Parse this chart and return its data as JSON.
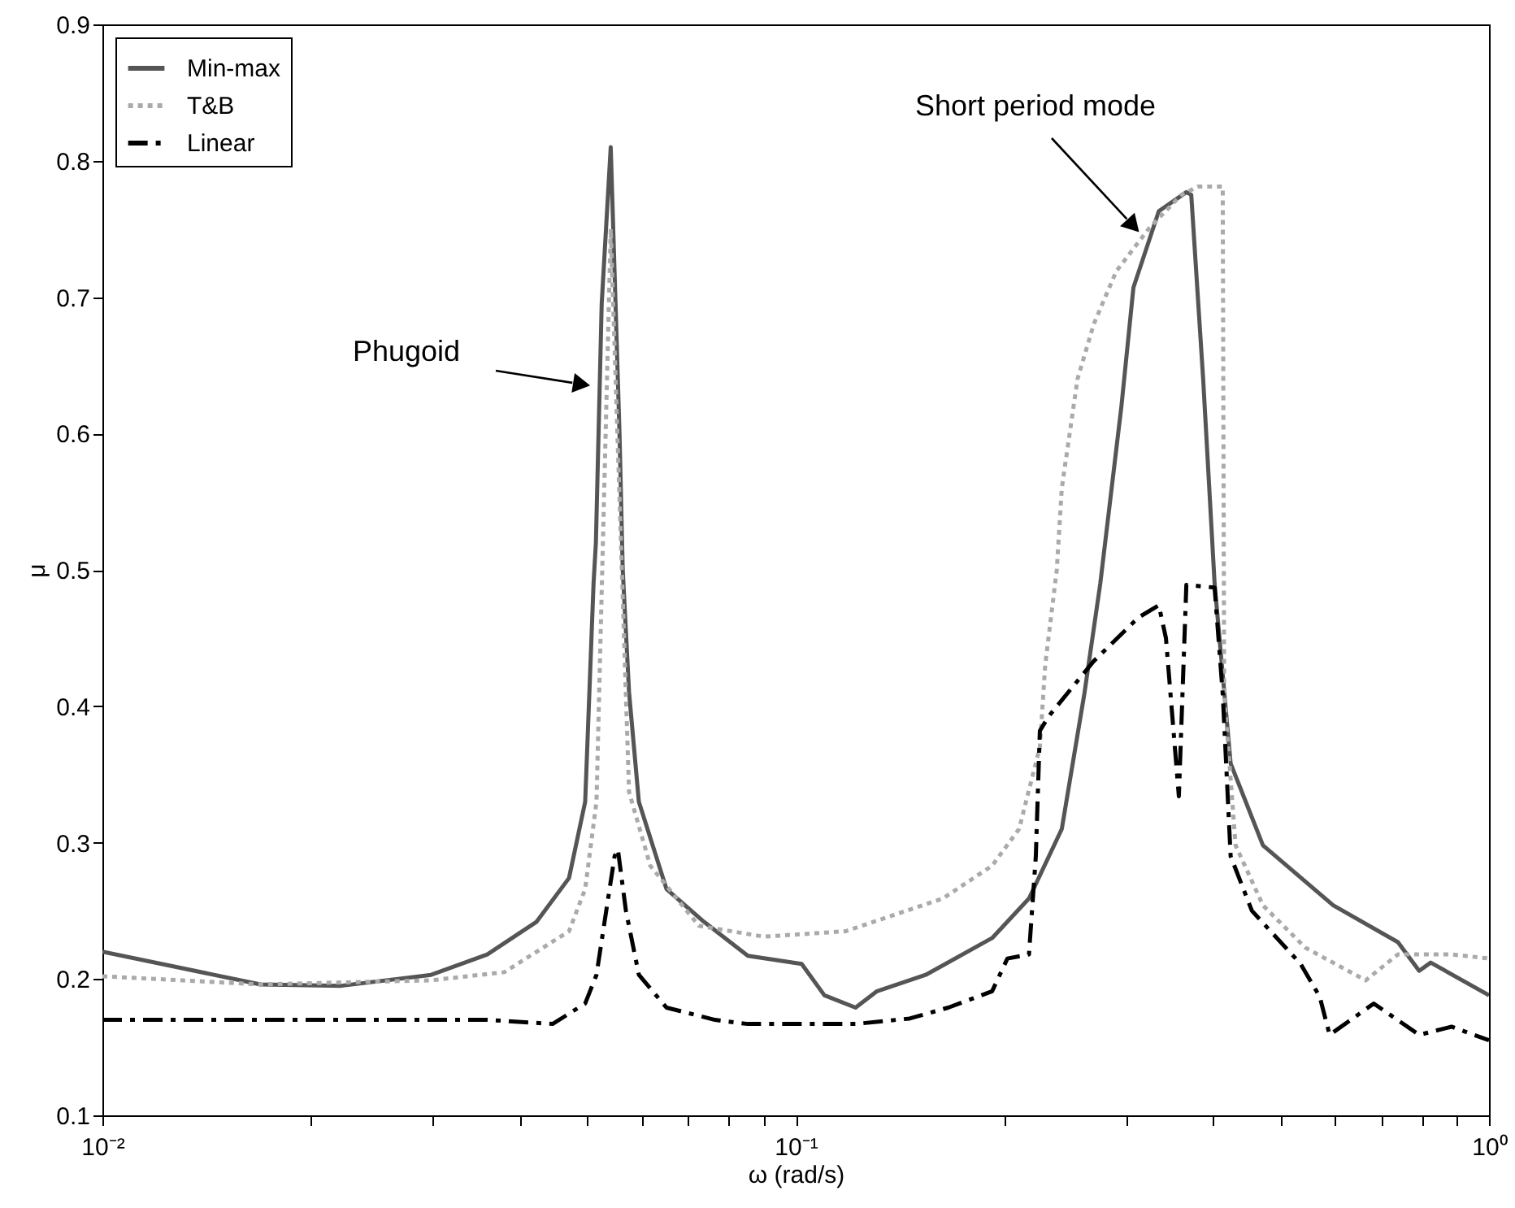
{
  "chart_data": {
    "type": "line",
    "xlabel": "ω (rad/s)",
    "ylabel": "μ",
    "log": "x",
    "legend": "top left",
    "xlim": [
      0.01,
      1
    ],
    "ylim": [
      0.1,
      0.9
    ],
    "xticks": [
      {
        "value": 0.01,
        "label": "10⁻²"
      },
      {
        "value": 0.02,
        "label": null
      },
      {
        "value": 0.03,
        "label": null
      },
      {
        "value": 0.04,
        "label": null
      },
      {
        "value": 0.05,
        "label": null
      },
      {
        "value": 0.06,
        "label": null
      },
      {
        "value": 0.07,
        "label": null
      },
      {
        "value": 0.08,
        "label": null
      },
      {
        "value": 0.09,
        "label": null
      },
      {
        "value": 0.1,
        "label": "10⁻¹"
      },
      {
        "value": 0.2,
        "label": null
      },
      {
        "value": 0.3,
        "label": null
      },
      {
        "value": 0.4,
        "label": null
      },
      {
        "value": 0.5,
        "label": null
      },
      {
        "value": 0.6,
        "label": null
      },
      {
        "value": 0.7,
        "label": null
      },
      {
        "value": 0.8,
        "label": null
      },
      {
        "value": 0.9,
        "label": null
      },
      {
        "value": 1,
        "label": "10⁰"
      }
    ],
    "yticks": [
      0.1,
      0.2,
      0.3,
      0.4,
      0.5,
      0.6,
      0.7,
      0.8,
      0.9
    ],
    "annotations": [
      "Phugoid",
      "Short period mode"
    ],
    "series": [
      {
        "name": "Min-max",
        "color": "#555555",
        "line_style": "solid",
        "x": [
          0.01,
          0.0169,
          0.0221,
          0.0298,
          0.0359,
          0.0423,
          0.0471,
          0.0497,
          0.0511,
          0.0515,
          0.0525,
          0.0541,
          0.0557,
          0.0563,
          0.0575,
          0.0594,
          0.0651,
          0.0737,
          0.0853,
          0.102,
          0.11,
          0.122,
          0.131,
          0.154,
          0.192,
          0.217,
          0.242,
          0.261,
          0.275,
          0.295,
          0.307,
          0.334,
          0.366,
          0.372,
          0.387,
          0.402,
          0.424,
          0.472,
          0.596,
          0.739,
          0.793,
          0.824,
          1
        ],
        "values": [
          0.22,
          0.196,
          0.195,
          0.203,
          0.218,
          0.242,
          0.274,
          0.33,
          0.49,
          0.52,
          0.695,
          0.81,
          0.6,
          0.5,
          0.41,
          0.33,
          0.266,
          0.242,
          0.217,
          0.211,
          0.188,
          0.179,
          0.191,
          0.203,
          0.23,
          0.259,
          0.31,
          0.41,
          0.49,
          0.62,
          0.707,
          0.763,
          0.777,
          0.775,
          0.64,
          0.49,
          0.358,
          0.298,
          0.254,
          0.227,
          0.206,
          0.212,
          0.188
        ]
      },
      {
        "name": "T&B",
        "color": "#aaaaaa",
        "line_style": "dotted",
        "x": [
          0.01,
          0.0169,
          0.0298,
          0.038,
          0.0471,
          0.0497,
          0.0516,
          0.0541,
          0.0575,
          0.0617,
          0.0725,
          0.09,
          0.118,
          0.163,
          0.192,
          0.21,
          0.225,
          0.229,
          0.238,
          0.242,
          0.255,
          0.269,
          0.29,
          0.324,
          0.36,
          0.38,
          0.413,
          0.415,
          0.431,
          0.472,
          0.543,
          0.664,
          0.739,
          0.883,
          1
        ],
        "values": [
          0.202,
          0.196,
          0.199,
          0.205,
          0.235,
          0.266,
          0.33,
          0.75,
          0.337,
          0.283,
          0.239,
          0.231,
          0.235,
          0.259,
          0.283,
          0.31,
          0.37,
          0.43,
          0.5,
          0.56,
          0.64,
          0.68,
          0.719,
          0.751,
          0.775,
          0.781,
          0.781,
          0.41,
          0.298,
          0.254,
          0.223,
          0.199,
          0.218,
          0.218,
          0.215
        ]
      },
      {
        "name": "Linear",
        "color": "#000000",
        "line_style": "dashed",
        "x": [
          0.01,
          0.0359,
          0.0446,
          0.0497,
          0.0516,
          0.0533,
          0.0548,
          0.0554,
          0.0569,
          0.0594,
          0.0651,
          0.0765,
          0.0853,
          0.122,
          0.146,
          0.166,
          0.192,
          0.202,
          0.217,
          0.222,
          0.225,
          0.232,
          0.269,
          0.312,
          0.334,
          0.342,
          0.357,
          0.366,
          0.402,
          0.413,
          0.424,
          0.455,
          0.535,
          0.57,
          0.589,
          0.682,
          0.793,
          0.883,
          1
        ],
        "values": [
          0.17,
          0.17,
          0.167,
          0.182,
          0.203,
          0.25,
          0.29,
          0.295,
          0.25,
          0.203,
          0.179,
          0.17,
          0.167,
          0.167,
          0.171,
          0.179,
          0.191,
          0.215,
          0.218,
          0.29,
          0.382,
          0.393,
          0.433,
          0.465,
          0.474,
          0.45,
          0.334,
          0.489,
          0.487,
          0.409,
          0.29,
          0.25,
          0.211,
          0.187,
          0.159,
          0.182,
          0.159,
          0.165,
          0.155
        ]
      }
    ]
  }
}
